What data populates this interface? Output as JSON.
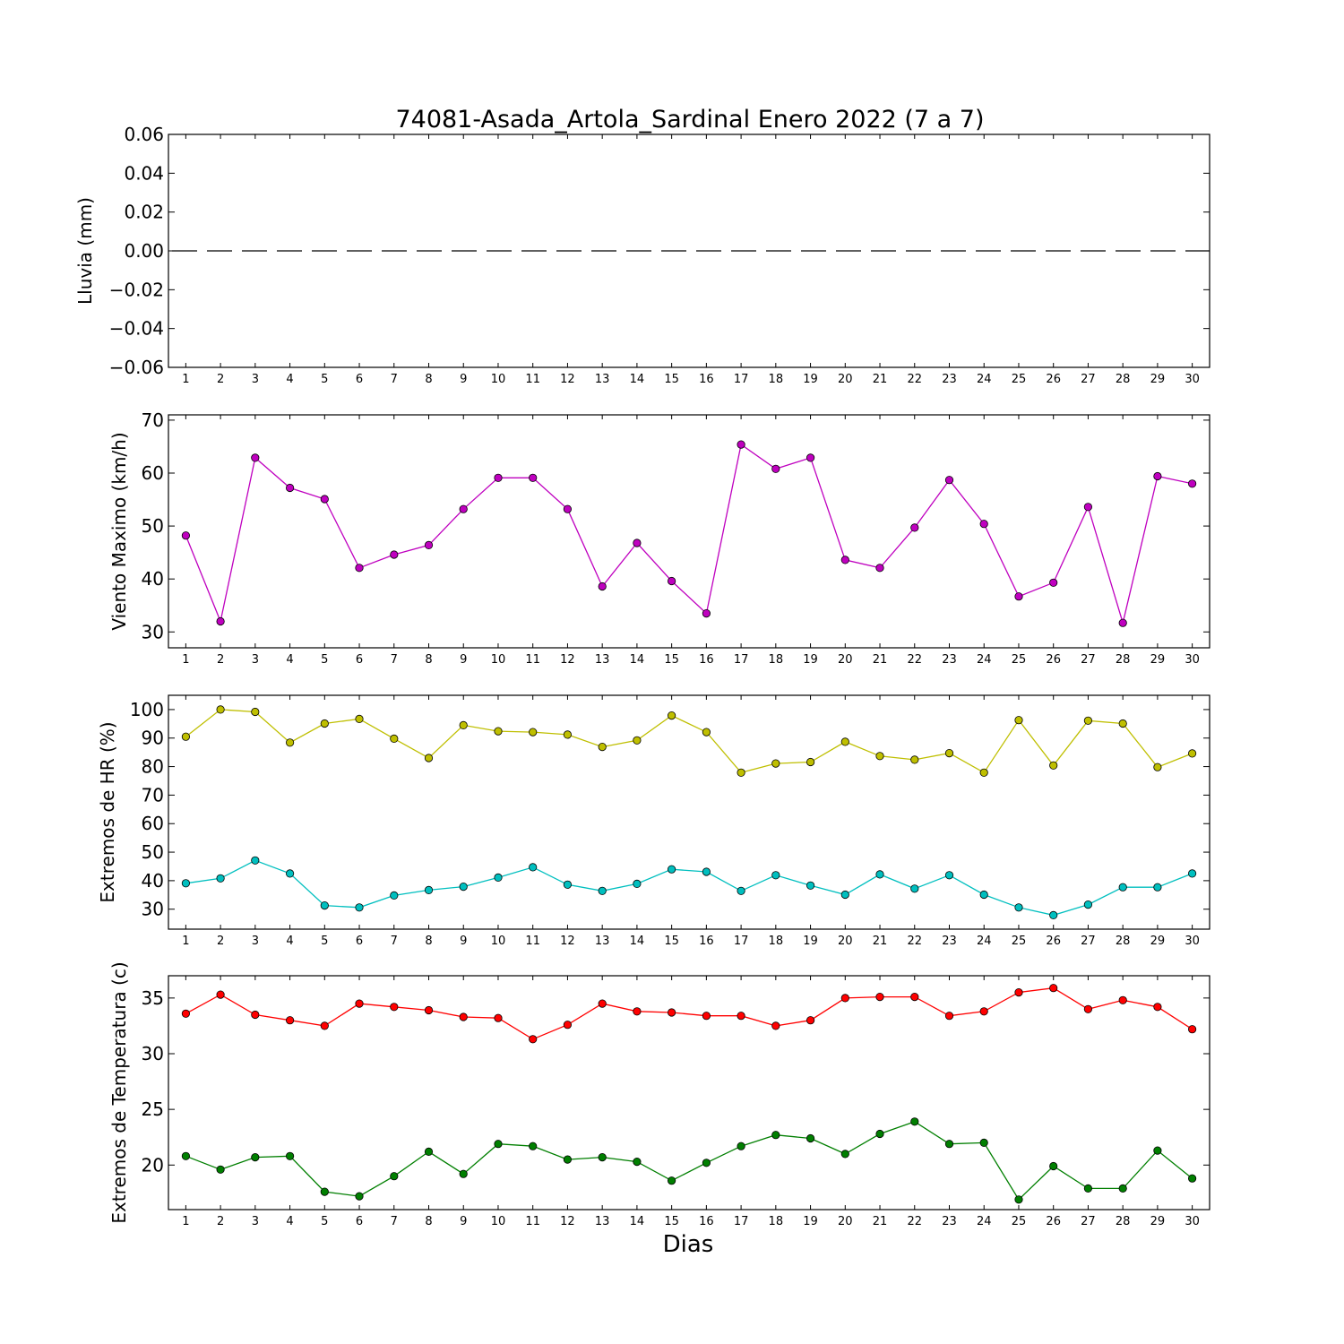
{
  "figure": {
    "title": "74081-Asada_Artola_Sardinal Enero 2022  (7 a 7)",
    "xlabel": "Dias"
  },
  "chart_data": [
    {
      "type": "line",
      "ylabel": "Lluvia (mm)",
      "ylim": [
        -0.06,
        0.06
      ],
      "yticks": [
        0.06,
        0.04,
        0.02,
        0.0,
        -0.02,
        -0.04,
        -0.06
      ],
      "ytick_labels": [
        "0.06",
        "0.04",
        "0.02",
        "0.00",
        "−0.02",
        "−0.04",
        "−0.06"
      ],
      "x": [
        1,
        2,
        3,
        4,
        5,
        6,
        7,
        8,
        9,
        10,
        11,
        12,
        13,
        14,
        15,
        16,
        17,
        18,
        19,
        20,
        21,
        22,
        23,
        24,
        25,
        26,
        27,
        28,
        29,
        30
      ],
      "series": [
        {
          "color": "#000000",
          "line_style": "dashed",
          "markers": false,
          "values": [
            0,
            0,
            0,
            0,
            0,
            0,
            0,
            0,
            0,
            0,
            0,
            0,
            0,
            0,
            0,
            0,
            0,
            0,
            0,
            0,
            0,
            0,
            0,
            0,
            0,
            0,
            0,
            0,
            0,
            0
          ]
        }
      ]
    },
    {
      "type": "line",
      "ylabel": "Viento Maximo (km/h)",
      "ylim": [
        27,
        71
      ],
      "yticks": [
        30,
        40,
        50,
        60,
        70
      ],
      "ytick_labels": [
        "30",
        "40",
        "50",
        "60",
        "70"
      ],
      "x": [
        1,
        2,
        3,
        4,
        5,
        6,
        7,
        8,
        9,
        10,
        11,
        12,
        13,
        14,
        15,
        16,
        17,
        18,
        19,
        20,
        21,
        22,
        23,
        24,
        25,
        26,
        27,
        28,
        29,
        30
      ],
      "series": [
        {
          "color": "#bf00bf",
          "line_style": "solid",
          "markers": true,
          "values": [
            48.2,
            32.0,
            62.9,
            57.2,
            55.1,
            42.1,
            44.6,
            46.4,
            53.2,
            59.1,
            59.1,
            53.2,
            38.6,
            46.8,
            39.6,
            33.5,
            65.4,
            60.8,
            62.9,
            43.6,
            42.1,
            49.7,
            58.7,
            50.4,
            36.7,
            39.3,
            53.6,
            31.7,
            59.4,
            58.0
          ]
        }
      ]
    },
    {
      "type": "line",
      "ylabel": "Extremos de HR (%)",
      "ylim": [
        23,
        105
      ],
      "yticks": [
        30,
        40,
        50,
        60,
        70,
        80,
        90,
        100
      ],
      "ytick_labels": [
        "30",
        "40",
        "50",
        "60",
        "70",
        "80",
        "90",
        "100"
      ],
      "x": [
        1,
        2,
        3,
        4,
        5,
        6,
        7,
        8,
        9,
        10,
        11,
        12,
        13,
        14,
        15,
        16,
        17,
        18,
        19,
        20,
        21,
        22,
        23,
        24,
        25,
        26,
        27,
        28,
        29,
        30
      ],
      "series": [
        {
          "color": "#bfbf00",
          "line_style": "solid",
          "markers": true,
          "values": [
            90.5,
            100,
            99.2,
            88.4,
            95.1,
            96.7,
            89.8,
            83.0,
            94.5,
            92.4,
            92.1,
            91.2,
            86.9,
            89.2,
            97.9,
            92.1,
            77.9,
            81.1,
            81.6,
            88.7,
            83.7,
            82.4,
            84.7,
            77.9,
            96.3,
            80.4,
            96.1,
            95.1,
            79.8,
            84.6
          ]
        },
        {
          "color": "#00bfbf",
          "line_style": "solid",
          "markers": true,
          "values": [
            39.1,
            40.8,
            47.1,
            42.5,
            31.3,
            30.6,
            34.8,
            36.7,
            37.9,
            41.1,
            44.7,
            38.6,
            36.4,
            38.9,
            44.0,
            43.1,
            36.4,
            41.9,
            38.3,
            35.1,
            42.2,
            37.2,
            41.9,
            35.1,
            30.6,
            27.9,
            31.6,
            37.7,
            37.7,
            42.5
          ]
        }
      ]
    },
    {
      "type": "line",
      "ylabel": "Extremos de Temperatura (c)",
      "ylim": [
        16,
        37
      ],
      "yticks": [
        20,
        25,
        30,
        35
      ],
      "ytick_labels": [
        "20",
        "25",
        "30",
        "35"
      ],
      "x": [
        1,
        2,
        3,
        4,
        5,
        6,
        7,
        8,
        9,
        10,
        11,
        12,
        13,
        14,
        15,
        16,
        17,
        18,
        19,
        20,
        21,
        22,
        23,
        24,
        25,
        26,
        27,
        28,
        29,
        30
      ],
      "series": [
        {
          "color": "#ff0000",
          "line_style": "solid",
          "markers": true,
          "values": [
            33.6,
            35.3,
            33.5,
            33.0,
            32.5,
            34.5,
            34.2,
            33.9,
            33.3,
            33.2,
            31.3,
            32.6,
            34.5,
            33.8,
            33.7,
            33.4,
            33.4,
            32.5,
            33.0,
            35.0,
            35.1,
            35.1,
            33.4,
            33.8,
            35.5,
            35.9,
            34.0,
            34.8,
            34.2,
            32.2
          ]
        },
        {
          "color": "#007f00",
          "line_style": "solid",
          "markers": true,
          "values": [
            20.8,
            19.6,
            20.7,
            20.8,
            17.6,
            17.2,
            19.0,
            21.2,
            19.2,
            21.9,
            21.7,
            20.5,
            20.7,
            20.3,
            18.6,
            20.2,
            21.7,
            22.7,
            22.4,
            21.0,
            22.8,
            23.9,
            21.9,
            22.0,
            16.9,
            19.9,
            17.9,
            17.9,
            21.3,
            18.8
          ]
        }
      ]
    }
  ]
}
